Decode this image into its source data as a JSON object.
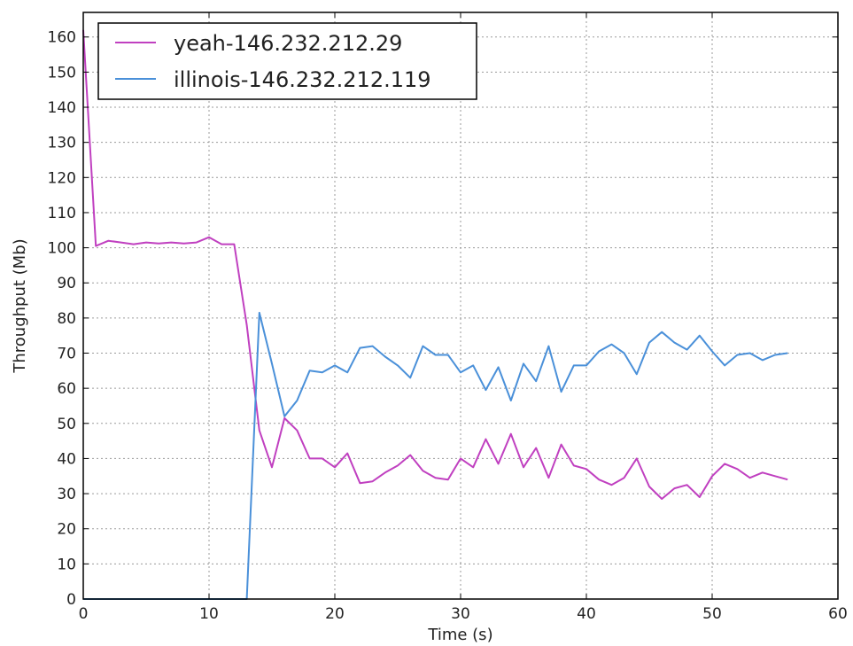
{
  "chart_data": {
    "type": "line",
    "xlabel": "Time (s)",
    "ylabel": "Throughput (Mb)",
    "xlim": [
      0,
      60
    ],
    "ylim": [
      0,
      167
    ],
    "xticks": [
      0,
      10,
      20,
      30,
      40,
      50,
      60
    ],
    "yticks": [
      0,
      10,
      20,
      30,
      40,
      50,
      60,
      70,
      80,
      90,
      100,
      110,
      120,
      130,
      140,
      150,
      160
    ],
    "grid": true,
    "legend_position": "top-left",
    "series": [
      {
        "name": "yeah-146.232.212.29",
        "color": "#c040c0",
        "x": [
          0,
          1,
          2,
          3,
          4,
          5,
          6,
          7,
          8,
          9,
          10,
          11,
          12,
          13,
          14,
          15,
          16,
          17,
          18,
          19,
          20,
          21,
          22,
          23,
          24,
          25,
          26,
          27,
          28,
          29,
          30,
          31,
          32,
          33,
          34,
          35,
          36,
          37,
          38,
          39,
          40,
          41,
          42,
          43,
          44,
          45,
          46,
          47,
          48,
          49,
          50,
          51,
          52,
          53,
          54,
          55,
          56
        ],
        "y": [
          162,
          100.5,
          102,
          101.5,
          101,
          101.5,
          101.2,
          101.5,
          101.2,
          101.5,
          103,
          101,
          101,
          78,
          48,
          37.5,
          51.5,
          48,
          40,
          40,
          37.5,
          41.5,
          33,
          33.5,
          36,
          38,
          41,
          36.5,
          34.5,
          34,
          40,
          37.5,
          45.5,
          38.5,
          47,
          37.5,
          43,
          34.5,
          44,
          38,
          37,
          34,
          32.5,
          34.5,
          40,
          32,
          28.5,
          31.5,
          32.5,
          29,
          35,
          38.5,
          37,
          34.5,
          36,
          35,
          34
        ]
      },
      {
        "name": "illinois-146.232.212.119",
        "color": "#4a90d9",
        "x": [
          0,
          1,
          2,
          3,
          4,
          5,
          6,
          7,
          8,
          9,
          10,
          11,
          12,
          13,
          14,
          15,
          16,
          17,
          18,
          19,
          20,
          21,
          22,
          23,
          24,
          25,
          26,
          27,
          28,
          29,
          30,
          31,
          32,
          33,
          34,
          35,
          36,
          37,
          38,
          39,
          40,
          41,
          42,
          43,
          44,
          45,
          46,
          47,
          48,
          49,
          50,
          51,
          52,
          53,
          54,
          55,
          56
        ],
        "y": [
          0,
          0,
          0,
          0,
          0,
          0,
          0,
          0,
          0,
          0,
          0,
          0,
          0,
          0,
          81.5,
          67,
          52,
          56.5,
          65,
          64.5,
          66.5,
          64.5,
          71.5,
          72,
          69,
          66.5,
          63,
          72,
          69.5,
          69.5,
          64.5,
          66.5,
          59.5,
          66,
          56.5,
          67,
          62,
          72,
          59,
          66.5,
          66.5,
          70.5,
          72.5,
          70,
          64,
          73,
          76,
          73,
          71,
          75,
          70.5,
          66.5,
          69.5,
          70,
          68,
          69.5,
          70
        ]
      }
    ]
  }
}
